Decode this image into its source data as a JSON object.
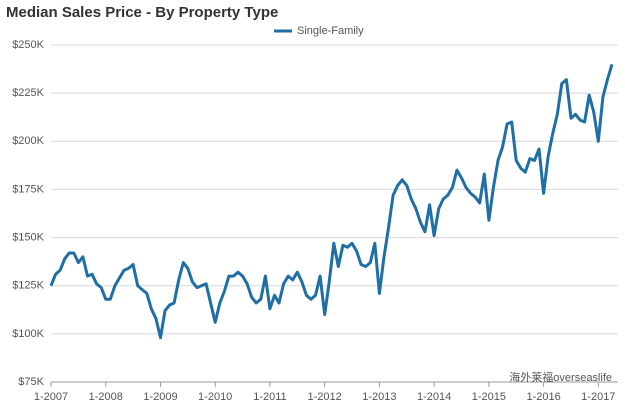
{
  "chart_data": {
    "type": "line",
    "title": "Median Sales Price - By Property Type",
    "watermark": "海外莱福overseaslife",
    "legend": "top",
    "grid": true,
    "categories": [
      "1-2007",
      null,
      null,
      null,
      null,
      null,
      null,
      null,
      null,
      null,
      null,
      null,
      "1-2008",
      null,
      null,
      null,
      null,
      null,
      null,
      null,
      null,
      null,
      null,
      null,
      "1-2009",
      null,
      null,
      null,
      null,
      null,
      null,
      null,
      null,
      null,
      null,
      null,
      "1-2010",
      null,
      null,
      null,
      null,
      null,
      null,
      null,
      null,
      null,
      null,
      null,
      "1-2011",
      null,
      null,
      null,
      null,
      null,
      null,
      null,
      null,
      null,
      null,
      null,
      "1-2012",
      null,
      null,
      null,
      null,
      null,
      null,
      null,
      null,
      null,
      null,
      null,
      "1-2013",
      null,
      null,
      null,
      null,
      null,
      null,
      null,
      null,
      null,
      null,
      null,
      "1-2014",
      null,
      null,
      null,
      null,
      null,
      null,
      null,
      null,
      null,
      null,
      null,
      "1-2015",
      null,
      null,
      null,
      null,
      null,
      null,
      null,
      null,
      null,
      null,
      null,
      "1-2016",
      null,
      null,
      null,
      null,
      null,
      null,
      null,
      null,
      null,
      null,
      null,
      "1-2017",
      null,
      null,
      null
    ],
    "series": [
      {
        "name": "Single-Family",
        "color": "#1f6fa6",
        "values": [
          125000,
          131000,
          133000,
          139000,
          142000,
          142000,
          137000,
          140000,
          130000,
          131000,
          126000,
          124000,
          118000,
          118000,
          125000,
          129000,
          133000,
          134000,
          136000,
          125000,
          123000,
          121000,
          113000,
          108000,
          98000,
          112000,
          115000,
          116000,
          128000,
          137000,
          134000,
          127000,
          124000,
          125000,
          126000,
          116000,
          106000,
          116000,
          122000,
          130000,
          130000,
          132000,
          130000,
          126000,
          119000,
          116000,
          118000,
          130000,
          113000,
          120000,
          116000,
          126000,
          130000,
          128000,
          132000,
          127000,
          120000,
          118000,
          120000,
          130000,
          110000,
          127000,
          147000,
          135000,
          146000,
          145000,
          147000,
          143000,
          136000,
          135000,
          137000,
          147000,
          121000,
          140000,
          155000,
          172000,
          177000,
          180000,
          177000,
          170000,
          165000,
          158000,
          153000,
          167000,
          151000,
          165000,
          170000,
          172000,
          176000,
          185000,
          181000,
          176000,
          173000,
          171000,
          168000,
          183000,
          159000,
          176000,
          190000,
          197000,
          209000,
          210000,
          190000,
          186000,
          184000,
          191000,
          190000,
          196000,
          173000,
          192000,
          204000,
          214000,
          230000,
          232000,
          212000,
          214000,
          211000,
          210000,
          224000,
          215000,
          200000,
          223000,
          232000,
          240000
        ]
      }
    ],
    "ylim": [
      75000,
      250000
    ],
    "yticks": [
      {
        "value": 75000,
        "label": "$75K"
      },
      {
        "value": 100000,
        "label": "$100K"
      },
      {
        "value": 125000,
        "label": "$125K"
      },
      {
        "value": 150000,
        "label": "$150K"
      },
      {
        "value": 175000,
        "label": "$175K"
      },
      {
        "value": 200000,
        "label": "$200K"
      },
      {
        "value": 225000,
        "label": "$225K"
      },
      {
        "value": 250000,
        "label": "$250K"
      }
    ]
  }
}
